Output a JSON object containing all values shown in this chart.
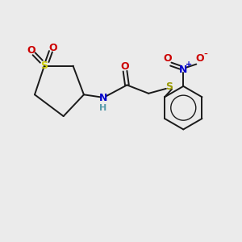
{
  "bg_color": "#ebebeb",
  "bond_color": "#1a1a1a",
  "S_color": "#cccc00",
  "N_color": "#0000cc",
  "O_color": "#cc0000",
  "S2_color": "#999900",
  "figsize": [
    3.0,
    3.0
  ],
  "dpi": 100,
  "xlim": [
    0,
    10
  ],
  "ylim": [
    0,
    10
  ]
}
